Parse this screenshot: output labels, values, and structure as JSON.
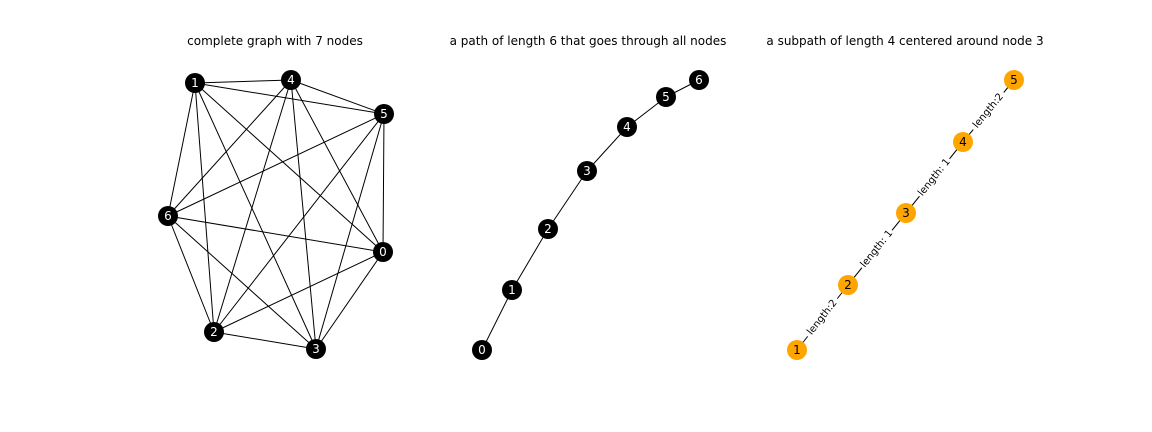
{
  "panels": [
    {
      "title": "complete graph with 7 nodes",
      "node_color": "#000000",
      "label_color": "#ffffff",
      "nodes": [
        "0",
        "1",
        "2",
        "3",
        "4",
        "5",
        "6"
      ],
      "edges": [
        [
          "0",
          "1"
        ],
        [
          "0",
          "2"
        ],
        [
          "0",
          "3"
        ],
        [
          "0",
          "4"
        ],
        [
          "0",
          "5"
        ],
        [
          "0",
          "6"
        ],
        [
          "1",
          "2"
        ],
        [
          "1",
          "3"
        ],
        [
          "1",
          "4"
        ],
        [
          "1",
          "5"
        ],
        [
          "1",
          "6"
        ],
        [
          "2",
          "3"
        ],
        [
          "2",
          "4"
        ],
        [
          "2",
          "5"
        ],
        [
          "2",
          "6"
        ],
        [
          "3",
          "4"
        ],
        [
          "3",
          "5"
        ],
        [
          "3",
          "6"
        ],
        [
          "4",
          "5"
        ],
        [
          "4",
          "6"
        ],
        [
          "5",
          "6"
        ]
      ]
    },
    {
      "title": "a path of length 6 that goes through all nodes",
      "node_color": "#000000",
      "label_color": "#ffffff",
      "nodes": [
        "0",
        "1",
        "2",
        "3",
        "4",
        "5",
        "6"
      ],
      "edges": [
        [
          "0",
          "1"
        ],
        [
          "1",
          "2"
        ],
        [
          "2",
          "3"
        ],
        [
          "3",
          "4"
        ],
        [
          "4",
          "5"
        ],
        [
          "5",
          "6"
        ]
      ]
    },
    {
      "title": "a subpath of length 4 centered around node 3",
      "node_color": "#ffa500",
      "label_color": "#000000",
      "nodes": [
        "1",
        "2",
        "3",
        "4",
        "5"
      ],
      "edges": [
        [
          "1",
          "2"
        ],
        [
          "2",
          "3"
        ],
        [
          "3",
          "4"
        ],
        [
          "4",
          "5"
        ]
      ],
      "edge_labels": [
        "length:2",
        "length: 1",
        "length: 1",
        "length:2"
      ]
    }
  ]
}
